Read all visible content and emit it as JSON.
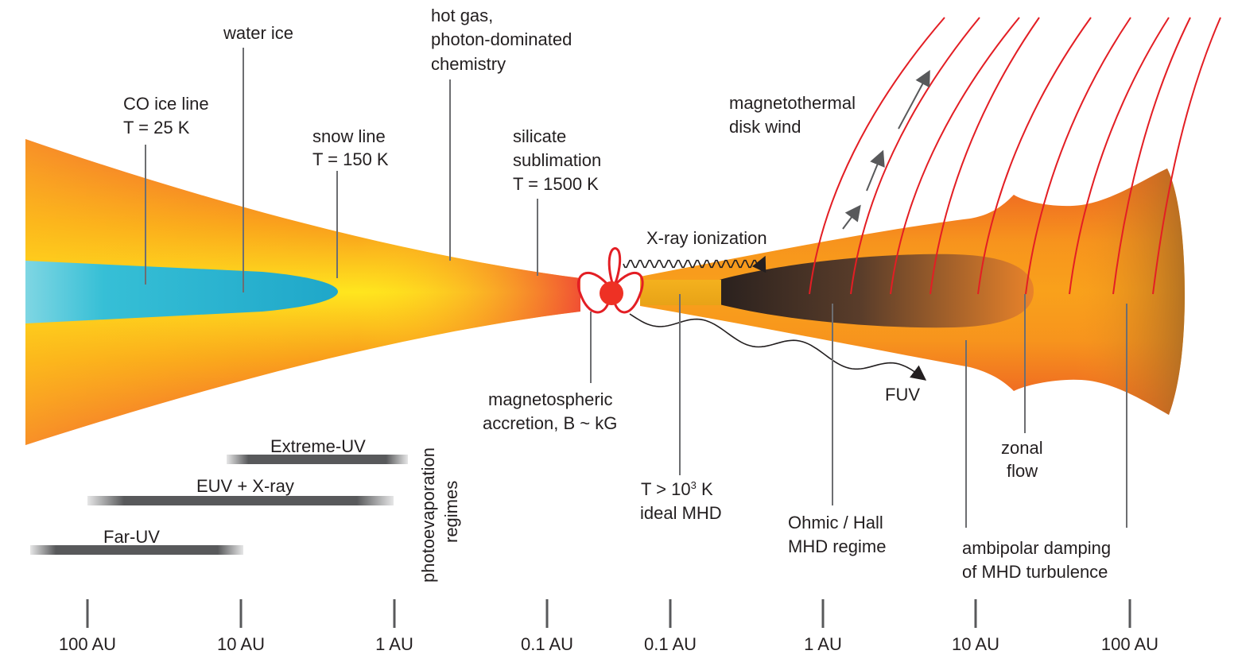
{
  "labels": {
    "water_ice": "water ice",
    "co_ice": [
      "CO ice line",
      "T = 25 K"
    ],
    "snow_line": [
      "snow line",
      "T = 150 K"
    ],
    "hot_gas": [
      "hot gas,",
      "photon-dominated",
      "chemistry"
    ],
    "silicate": [
      "silicate",
      "sublimation",
      "T = 1500 K"
    ],
    "disk_wind": [
      "magnetothermal",
      "disk wind"
    ],
    "xray": "X-ray ionization",
    "fuv": "FUV",
    "magnetospheric": [
      "magnetospheric",
      "accretion, B ~ kG"
    ],
    "ideal_mhd": [
      "T > 10",
      "3",
      " K",
      "ideal MHD"
    ],
    "ohmic_hall": [
      "Ohmic / Hall",
      "MHD regime"
    ],
    "zonal": [
      "zonal",
      "flow"
    ],
    "ambipolar": [
      "ambipolar damping",
      "of MHD turbulence"
    ],
    "photoevap": [
      "photoevaporation",
      "regimes"
    ],
    "regimes": [
      "Extreme-UV",
      "EUV + X-ray",
      "Far-UV"
    ]
  },
  "axis_ticks": [
    "100 AU",
    "10 AU",
    "1 AU",
    "0.1 AU",
    "0.1 AU",
    "1 AU",
    "10 AU",
    "100 AU"
  ],
  "colors": {
    "ice": "#2bbad4",
    "disk_yellow": "#ffe01b",
    "disk_red": "#ee3b3b",
    "disk_orange": "#f7941d",
    "dead_zone": "#3c2a22",
    "field_lines": "#e31e24",
    "star": "#ee3124"
  }
}
